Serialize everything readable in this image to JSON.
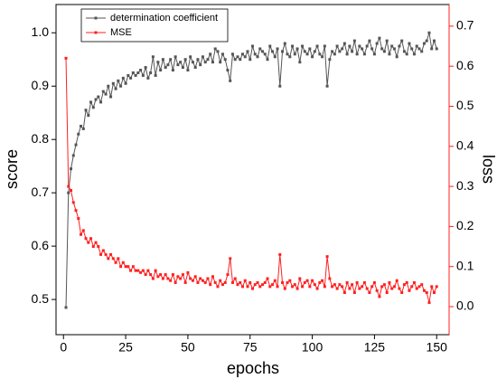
{
  "chart_data": {
    "type": "line",
    "x_label": "epochs",
    "y_label": "score",
    "y2_label": "loss",
    "x": [
      1,
      2,
      3,
      4,
      5,
      6,
      7,
      8,
      9,
      10,
      11,
      12,
      13,
      14,
      15,
      16,
      17,
      18,
      19,
      20,
      21,
      22,
      23,
      24,
      25,
      26,
      27,
      28,
      29,
      30,
      31,
      32,
      33,
      34,
      35,
      36,
      37,
      38,
      39,
      40,
      41,
      42,
      43,
      44,
      45,
      46,
      47,
      48,
      49,
      50,
      51,
      52,
      53,
      54,
      55,
      56,
      57,
      58,
      59,
      60,
      61,
      62,
      63,
      64,
      65,
      66,
      67,
      68,
      69,
      70,
      71,
      72,
      73,
      74,
      75,
      76,
      77,
      78,
      79,
      80,
      81,
      82,
      83,
      84,
      85,
      86,
      87,
      88,
      89,
      90,
      91,
      92,
      93,
      94,
      95,
      96,
      97,
      98,
      99,
      100,
      101,
      102,
      103,
      104,
      105,
      106,
      107,
      108,
      109,
      110,
      111,
      112,
      113,
      114,
      115,
      116,
      117,
      118,
      119,
      120,
      121,
      122,
      123,
      124,
      125,
      126,
      127,
      128,
      129,
      130,
      131,
      132,
      133,
      134,
      135,
      136,
      137,
      138,
      139,
      140,
      141,
      142,
      143,
      144,
      145,
      146,
      147,
      148,
      149,
      150
    ],
    "series": [
      {
        "name": "determination coefficient",
        "color": "#555555",
        "axis": "y",
        "values": [
          0.485,
          0.7,
          0.745,
          0.77,
          0.79,
          0.81,
          0.825,
          0.82,
          0.855,
          0.845,
          0.87,
          0.86,
          0.875,
          0.88,
          0.87,
          0.89,
          0.885,
          0.9,
          0.88,
          0.905,
          0.895,
          0.91,
          0.9,
          0.915,
          0.905,
          0.92,
          0.915,
          0.925,
          0.92,
          0.925,
          0.93,
          0.92,
          0.935,
          0.915,
          0.925,
          0.955,
          0.92,
          0.945,
          0.93,
          0.95,
          0.935,
          0.94,
          0.95,
          0.93,
          0.955,
          0.94,
          0.945,
          0.935,
          0.95,
          0.93,
          0.955,
          0.945,
          0.935,
          0.95,
          0.94,
          0.955,
          0.945,
          0.95,
          0.96,
          0.945,
          0.97,
          0.965,
          0.945,
          0.96,
          0.95,
          0.93,
          0.91,
          0.96,
          0.95,
          0.955,
          0.95,
          0.96,
          0.955,
          0.965,
          0.95,
          0.975,
          0.96,
          0.955,
          0.97,
          0.965,
          0.96,
          0.95,
          0.975,
          0.965,
          0.955,
          0.97,
          0.9,
          0.965,
          0.98,
          0.96,
          0.955,
          0.975,
          0.96,
          0.97,
          0.945,
          0.975,
          0.965,
          0.96,
          0.97,
          0.955,
          0.965,
          0.975,
          0.96,
          0.955,
          0.975,
          0.9,
          0.95,
          0.965,
          0.96,
          0.975,
          0.965,
          0.97,
          0.98,
          0.96,
          0.975,
          0.965,
          0.985,
          0.96,
          0.975,
          0.97,
          0.96,
          0.975,
          0.985,
          0.97,
          0.96,
          0.98,
          0.99,
          0.97,
          0.965,
          0.985,
          0.96,
          0.975,
          0.97,
          0.955,
          0.975,
          0.985,
          0.965,
          0.96,
          0.98,
          0.97,
          0.96,
          0.975,
          0.97,
          0.965,
          0.98,
          0.985,
          1.0,
          0.97,
          0.985,
          0.97
        ]
      },
      {
        "name": "MSE",
        "color": "#ff2020",
        "axis": "y2",
        "values": [
          0.62,
          0.3,
          0.29,
          0.26,
          0.24,
          0.22,
          0.18,
          0.19,
          0.17,
          0.16,
          0.17,
          0.15,
          0.16,
          0.15,
          0.13,
          0.14,
          0.13,
          0.12,
          0.13,
          0.12,
          0.11,
          0.12,
          0.1,
          0.11,
          0.1,
          0.1,
          0.09,
          0.1,
          0.09,
          0.09,
          0.085,
          0.09,
          0.08,
          0.09,
          0.08,
          0.07,
          0.09,
          0.075,
          0.08,
          0.07,
          0.08,
          0.07,
          0.065,
          0.08,
          0.06,
          0.075,
          0.07,
          0.08,
          0.06,
          0.085,
          0.07,
          0.065,
          0.075,
          0.06,
          0.07,
          0.065,
          0.06,
          0.07,
          0.055,
          0.075,
          0.06,
          0.05,
          0.065,
          0.055,
          0.06,
          0.08,
          0.12,
          0.06,
          0.07,
          0.055,
          0.06,
          0.05,
          0.065,
          0.05,
          0.06,
          0.045,
          0.055,
          0.06,
          0.05,
          0.055,
          0.06,
          0.07,
          0.05,
          0.055,
          0.065,
          0.05,
          0.13,
          0.06,
          0.045,
          0.06,
          0.065,
          0.05,
          0.055,
          0.045,
          0.07,
          0.05,
          0.06,
          0.065,
          0.05,
          0.065,
          0.055,
          0.045,
          0.06,
          0.065,
          0.05,
          0.125,
          0.07,
          0.05,
          0.055,
          0.045,
          0.055,
          0.05,
          0.035,
          0.06,
          0.045,
          0.055,
          0.035,
          0.06,
          0.045,
          0.05,
          0.06,
          0.045,
          0.035,
          0.05,
          0.06,
          0.04,
          0.025,
          0.05,
          0.055,
          0.035,
          0.06,
          0.045,
          0.05,
          0.065,
          0.045,
          0.035,
          0.055,
          0.06,
          0.04,
          0.05,
          0.06,
          0.045,
          0.05,
          0.055,
          0.04,
          0.035,
          0.01,
          0.05,
          0.035,
          0.05
        ]
      }
    ],
    "xlim": [
      -3,
      155
    ],
    "xticks": [
      0,
      25,
      50,
      75,
      100,
      125,
      150
    ],
    "ylim": [
      0.434,
      1.053
    ],
    "yticks": [
      0.5,
      0.6,
      0.7,
      0.8,
      0.9,
      {
        "value": 1,
        "label": "1.0"
      }
    ],
    "y2lim": [
      -0.07,
      0.754
    ],
    "y2ticks": [
      {
        "value": 0,
        "label": "0.0"
      },
      0.1,
      0.2,
      0.3,
      0.4,
      0.5,
      0.6,
      0.7
    ],
    "y2_color": "#ff2020",
    "legend": "upper-left",
    "grid": false
  }
}
